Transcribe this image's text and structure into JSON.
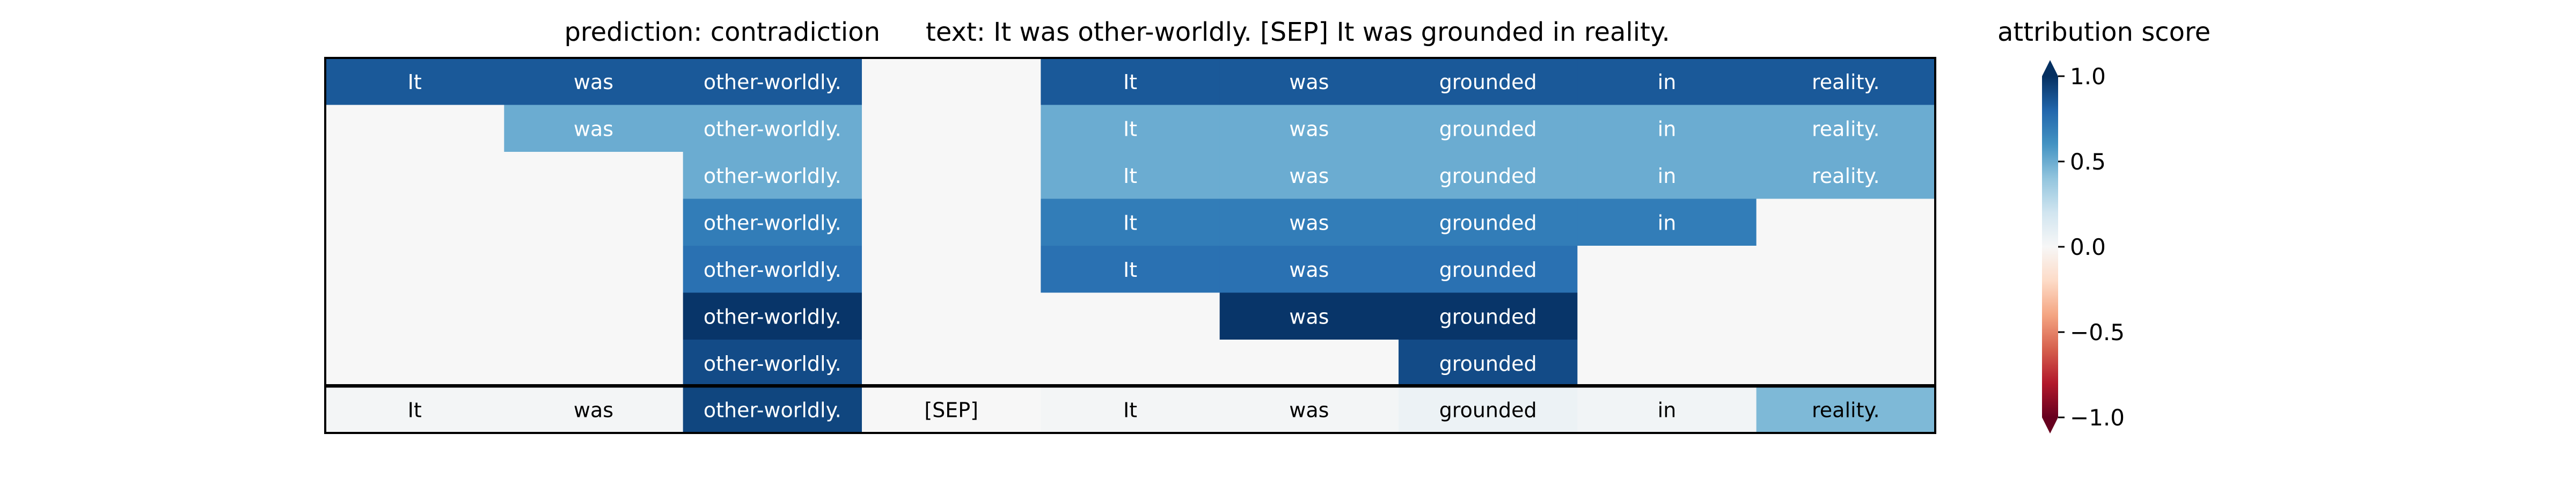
{
  "chart_data": {
    "type": "heatmap",
    "title_prediction": "prediction:  contradiction",
    "title_text": "text:  It was other-worldly. [SEP] It was grounded in reality.",
    "tokens": [
      "It",
      "was",
      "other-worldly.",
      "[SEP]",
      "It",
      "was",
      "grounded",
      "in",
      "reality."
    ],
    "rows": [
      [
        0.85,
        0.85,
        0.85,
        null,
        0.85,
        0.85,
        0.85,
        0.85,
        0.85
      ],
      [
        null,
        0.5,
        0.5,
        null,
        0.5,
        0.5,
        0.5,
        0.5,
        0.5
      ],
      [
        null,
        null,
        0.5,
        null,
        0.5,
        0.5,
        0.5,
        0.5,
        0.5
      ],
      [
        null,
        null,
        0.7,
        null,
        0.7,
        0.7,
        0.7,
        0.7,
        null
      ],
      [
        null,
        null,
        0.75,
        null,
        0.75,
        0.75,
        0.75,
        null,
        null
      ],
      [
        null,
        null,
        0.98,
        null,
        null,
        0.98,
        0.98,
        null,
        null
      ],
      [
        null,
        null,
        0.9,
        null,
        null,
        null,
        0.9,
        null,
        null
      ]
    ],
    "summary_row": [
      0.02,
      0.02,
      0.92,
      0.0,
      0.02,
      0.02,
      0.06,
      0.03,
      0.45
    ],
    "colorbar": {
      "title": "attribution score",
      "ticks": [
        1.0,
        0.5,
        0.0,
        -0.5,
        -1.0
      ],
      "tick_labels": [
        "1.0",
        "0.5",
        "0.0",
        "−0.5",
        "−1.0"
      ],
      "range": [
        -1,
        1
      ],
      "colormap": "RdBu"
    }
  }
}
